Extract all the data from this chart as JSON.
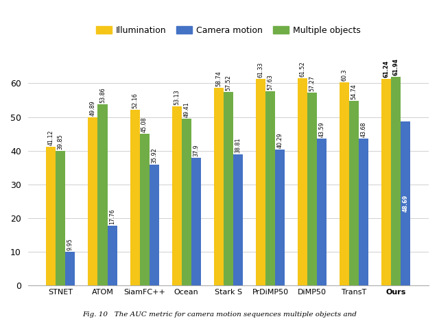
{
  "categories": [
    "STNET",
    "ATOM",
    "SiamFC++",
    "Ocean",
    "Stark S",
    "PrDiMP50",
    "DiMP50",
    "TransT",
    "Ours"
  ],
  "illumination": [
    41.12,
    49.89,
    52.16,
    53.13,
    58.74,
    61.33,
    61.52,
    60.3,
    61.24
  ],
  "camera_motion": [
    9.95,
    17.76,
    35.92,
    37.9,
    38.81,
    40.29,
    43.59,
    43.68,
    48.69
  ],
  "multiple_objects": [
    39.85,
    53.86,
    45.08,
    49.41,
    57.52,
    57.63,
    57.27,
    54.74,
    61.94
  ],
  "color_illumination": "#F5C518",
  "color_camera_motion": "#4472C4",
  "color_multiple_objects": "#70AD47",
  "ylim": [
    0,
    67
  ],
  "yticks": [
    0,
    10,
    20,
    30,
    40,
    50,
    60
  ],
  "legend_labels": [
    "Illumination",
    "Camera motion",
    "Multiple objects"
  ],
  "bar_width": 0.23,
  "fig_caption": "Fig. 10   The AUC metric for camera motion sequences multiple objects and"
}
